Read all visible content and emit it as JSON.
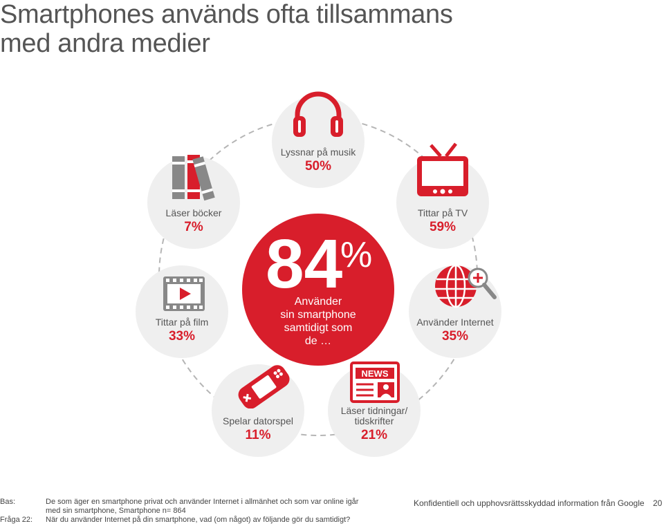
{
  "title": {
    "line1": "Smartphones används ofta tillsammans",
    "line2": "med andra medier"
  },
  "center": {
    "value": "84",
    "unit": "%",
    "line1": "Använder",
    "line2": "sin smartphone",
    "line3": "samtidigt som",
    "line4": "de …"
  },
  "nodes": {
    "music": {
      "label": "Lyssnar på musik",
      "pct": "50%"
    },
    "tv": {
      "label": "Tittar på TV",
      "pct": "59%"
    },
    "internet": {
      "label": "Använder Internet",
      "pct": "35%"
    },
    "news": {
      "label1": "Läser tidningar/",
      "label2": "tidskrifter",
      "pct": "21%",
      "badge": "NEWS"
    },
    "games": {
      "label": "Spelar datorspel",
      "pct": "11%"
    },
    "film": {
      "label": "Tittar på film",
      "pct": "33%"
    },
    "books": {
      "label": "Läser böcker",
      "pct": "7%"
    }
  },
  "footer": {
    "bas_label": "Bas:",
    "bas_line1": "De som äger en smartphone privat och använder Internet i allmänhet och som var online igår",
    "bas_line2": "med sin smartphone, Smartphone n= 864",
    "fraga_label": "Fråga 22:",
    "fraga_text": "När du använder Internet på din smartphone, vad (om något) av följande gör du samtidigt?",
    "confidential": "Konfidentiell och upphovsrättsskyddad information från Google",
    "page_number": "20"
  },
  "colors": {
    "accent": "#d81e2b",
    "grey_bg": "#efefef",
    "icon_grey": "#888888"
  }
}
